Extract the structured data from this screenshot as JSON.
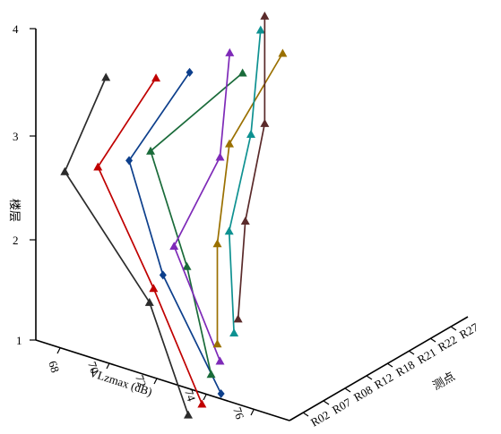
{
  "chart_data": {
    "type": "line3d",
    "z_axis": {
      "label": "楼层",
      "range": [
        1,
        4
      ],
      "ticks": [
        "1",
        "2",
        "3",
        "4"
      ]
    },
    "x_axis": {
      "label": "VLzmax (dB)",
      "ticks": [
        "68",
        "70",
        "72",
        "74",
        "76"
      ]
    },
    "y_axis": {
      "label": "测点",
      "ticks": [
        "R02",
        "R07",
        "R08",
        "R12",
        "R18",
        "R21",
        "R22",
        "R27"
      ]
    },
    "series": [
      {
        "color": "#2b2b2b",
        "marker": "up-triangle",
        "values": [
          74.0,
          72.4,
          68.9,
          70.6
        ]
      },
      {
        "color": "#c00000",
        "marker": "up-triangle",
        "values": [
          74.1,
          72.1,
          69.8,
          72.2
        ]
      },
      {
        "color": "#0d3f8c",
        "marker": "diamond",
        "values": [
          74.4,
          72.0,
          70.6,
          73.1
        ]
      },
      {
        "color": "#1a6b3a",
        "marker": "up-triangle",
        "values": [
          73.5,
          72.5,
          71.0,
          74.8
        ]
      },
      {
        "color": "#7e2ab8",
        "marker": "up-triangle",
        "values": [
          73.4,
          71.5,
          73.4,
          73.8
        ]
      },
      {
        "color": "#9a7000",
        "marker": "up-triangle",
        "values": [
          72.8,
          72.8,
          73.3,
          75.5
        ]
      },
      {
        "color": "#0e9191",
        "marker": "up-triangle",
        "values": [
          73.0,
          72.8,
          73.7,
          74.1
        ]
      },
      {
        "color": "#5a2a2a",
        "marker": "up-triangle",
        "values": [
          72.7,
          73.0,
          73.8,
          73.8
        ]
      }
    ]
  }
}
